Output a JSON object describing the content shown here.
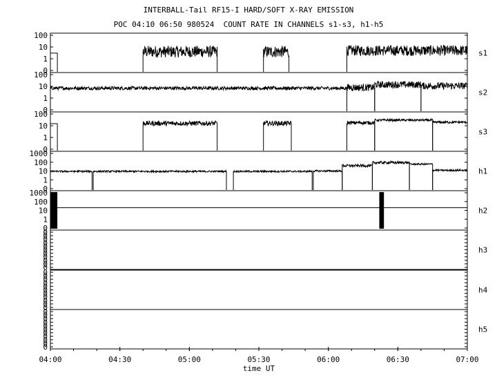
{
  "title": "INTERBALL-Tail RF15-I HARD/SOFT X-RAY EMISSION",
  "subtitle": "POC 04:10 06:50 980524  COUNT RATE IN CHANNELS s1-s3, h1-h5",
  "chart_data": {
    "type": "line",
    "title": "INTERBALL-Tail RF15-I HARD/SOFT X-RAY EMISSION",
    "subtitle": "POC 04:10 06:50 980524  COUNT RATE IN CHANNELS s1-s3, h1-h5",
    "xlabel": "time UT",
    "x_range": [
      "04:00",
      "07:00"
    ],
    "x_ticks": [
      "04:00",
      "04:30",
      "05:00",
      "05:30",
      "06:00",
      "06:30",
      "07:00"
    ],
    "y_scale": "log",
    "grid": false,
    "panels": [
      {
        "name": "s1",
        "y_ticks": [
          "100",
          "10",
          "1",
          "0"
        ],
        "segments": [
          {
            "start": "04:00",
            "end": "04:03",
            "level": 3,
            "noise": 0
          },
          {
            "start": "04:40",
            "end": "05:12",
            "level": 4,
            "noise": 0.5
          },
          {
            "start": "05:32",
            "end": "05:43",
            "level": 4,
            "noise": 0.5
          },
          {
            "start": "06:08",
            "end": "07:00",
            "level": 5,
            "noise": 0.45
          }
        ]
      },
      {
        "name": "s2",
        "y_ticks": [
          "100",
          "10",
          "1",
          "0"
        ],
        "segments": [
          {
            "start": "04:00",
            "end": "06:08",
            "level": 7,
            "noise": 0.15
          },
          {
            "start": "06:08",
            "end": "06:20",
            "level": 8,
            "noise": 0.3
          },
          {
            "start": "06:20",
            "end": "06:40",
            "level": 14,
            "noise": 0.3
          },
          {
            "start": "06:40",
            "end": "07:00",
            "level": 11,
            "noise": 0.3
          }
        ]
      },
      {
        "name": "s3",
        "y_ticks": [
          "100",
          "10",
          "1",
          "0"
        ],
        "segments": [
          {
            "start": "04:00",
            "end": "04:03",
            "level": 15,
            "noise": 0
          },
          {
            "start": "04:40",
            "end": "05:12",
            "level": 16,
            "noise": 0.2
          },
          {
            "start": "05:32",
            "end": "05:44",
            "level": 16,
            "noise": 0.2
          },
          {
            "start": "06:08",
            "end": "06:20",
            "level": 18,
            "noise": 0.15
          },
          {
            "start": "06:20",
            "end": "06:45",
            "level": 30,
            "noise": 0.1
          },
          {
            "start": "06:45",
            "end": "07:00",
            "level": 20,
            "noise": 0.1
          }
        ]
      },
      {
        "name": "h1",
        "y_ticks": [
          "1000",
          "100",
          "10",
          "1",
          "0"
        ],
        "segments": [
          {
            "start": "04:00",
            "end": "04:18",
            "level": 9,
            "noise": 0.1
          },
          {
            "start": "04:18.5",
            "end": "05:16",
            "level": 9,
            "noise": 0.1
          },
          {
            "start": "05:19",
            "end": "05:53",
            "level": 9,
            "noise": 0.1
          },
          {
            "start": "05:53.5",
            "end": "06:06",
            "level": 10,
            "noise": 0.1
          },
          {
            "start": "06:06",
            "end": "06:19",
            "level": 40,
            "noise": 0.15
          },
          {
            "start": "06:19",
            "end": "06:35",
            "level": 90,
            "noise": 0.15
          },
          {
            "start": "06:35",
            "end": "06:45",
            "level": 60,
            "noise": 0.1
          },
          {
            "start": "06:45",
            "end": "07:00",
            "level": 12,
            "noise": 0.1
          }
        ]
      },
      {
        "name": "h2",
        "y_ticks": [
          "1000",
          "100",
          "10",
          "1",
          "0"
        ],
        "baseline": 20,
        "bursts": [
          {
            "start": "04:00",
            "end": "04:03"
          },
          {
            "start": "06:22",
            "end": "06:24"
          }
        ]
      },
      {
        "name": "h3",
        "y_ticks": [
          "0",
          "0",
          "0",
          "0",
          "0",
          "0",
          "0",
          "0",
          "0",
          "0",
          "0"
        ],
        "segments": []
      },
      {
        "name": "h4",
        "y_ticks": [
          "0",
          "0",
          "0",
          "0",
          "0",
          "0",
          "0",
          "0",
          "0",
          "0",
          "0"
        ],
        "segments": []
      },
      {
        "name": "h5",
        "y_ticks": [
          "0",
          "0",
          "0",
          "0",
          "0",
          "0",
          "0",
          "0",
          "0",
          "0",
          "0"
        ],
        "segments": []
      }
    ]
  }
}
